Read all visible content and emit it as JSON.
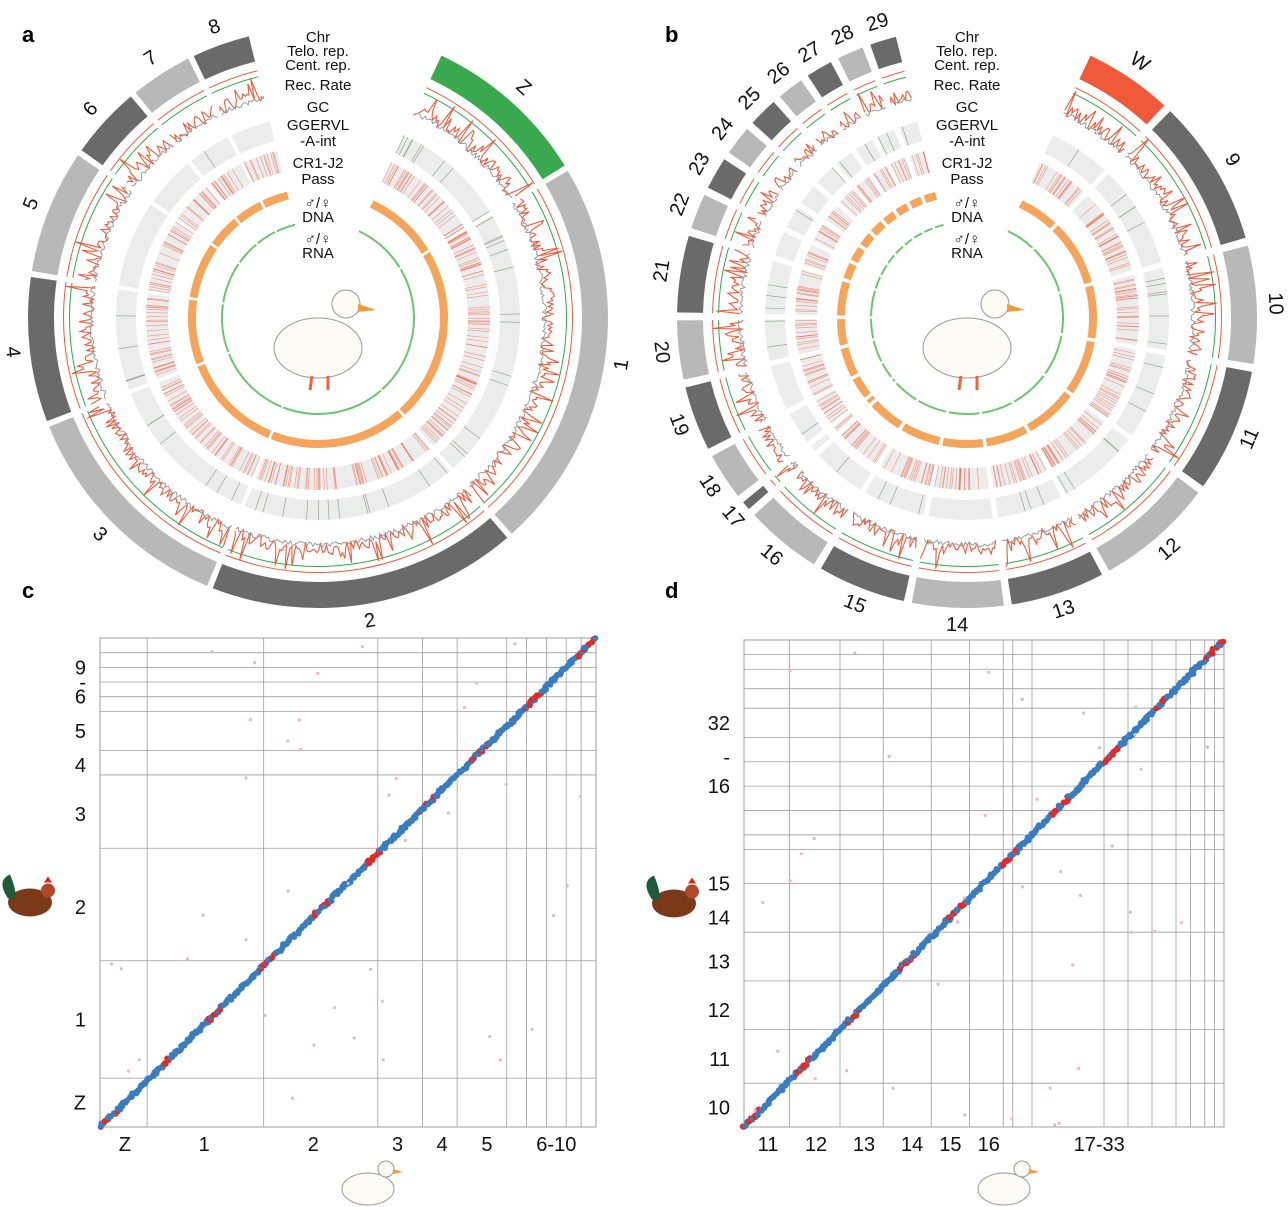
{
  "panels": {
    "a": {
      "letter": "a",
      "track_labels": [
        "Chr",
        "Telo. rep.",
        "Cent. rep.",
        "Rec. Rate",
        "GC",
        "GGERVL",
        "-A-int",
        "CR1-J2",
        "Pass",
        "♂/♀",
        "DNA",
        "♂/♀",
        "RNA"
      ],
      "chromosomes": [
        {
          "name": "Z",
          "size": 8,
          "color": "#3aa84e"
        },
        {
          "name": "1",
          "size": 19,
          "color": "#b8b8b8"
        },
        {
          "name": "2",
          "size": 15,
          "color": "#6a6a6a"
        },
        {
          "name": "3",
          "size": 11,
          "color": "#b8b8b8"
        },
        {
          "name": "4",
          "size": 7,
          "color": "#6a6a6a"
        },
        {
          "name": "5",
          "size": 6,
          "color": "#b8b8b8"
        },
        {
          "name": "6",
          "size": 3.5,
          "color": "#6a6a6a"
        },
        {
          "name": "7",
          "size": 3,
          "color": "#b8b8b8"
        },
        {
          "name": "8",
          "size": 2.8,
          "color": "#6a6a6a"
        }
      ]
    },
    "b": {
      "letter": "b",
      "track_labels": [
        "Chr",
        "Telo. rep.",
        "Cent. rep.",
        "Rec. Rate",
        "GC",
        "GGERVL",
        "-A-int",
        "CR1-J2",
        "Pass",
        "♂/♀",
        "DNA",
        "♂/♀",
        "RNA"
      ],
      "chromosomes": [
        {
          "name": "W",
          "size": 3,
          "color": "#f0593a"
        },
        {
          "name": "9",
          "size": 5,
          "color": "#6a6a6a"
        },
        {
          "name": "10",
          "size": 4,
          "color": "#b8b8b8"
        },
        {
          "name": "11",
          "size": 4.2,
          "color": "#6a6a6a"
        },
        {
          "name": "12",
          "size": 4,
          "color": "#b8b8b8"
        },
        {
          "name": "13",
          "size": 3.2,
          "color": "#6a6a6a"
        },
        {
          "name": "14",
          "size": 3.1,
          "color": "#b8b8b8"
        },
        {
          "name": "15",
          "size": 3,
          "color": "#6a6a6a"
        },
        {
          "name": "16",
          "size": 2.6,
          "color": "#b8b8b8"
        },
        {
          "name": "17",
          "size": 0.3,
          "color": "#6a6a6a"
        },
        {
          "name": "18",
          "size": 1.6,
          "color": "#b8b8b8"
        },
        {
          "name": "19",
          "size": 2.2,
          "color": "#6a6a6a"
        },
        {
          "name": "20",
          "size": 2,
          "color": "#b8b8b8"
        },
        {
          "name": "21",
          "size": 2.6,
          "color": "#6a6a6a"
        },
        {
          "name": "22",
          "size": 1.2,
          "color": "#b8b8b8"
        },
        {
          "name": "23",
          "size": 1.1,
          "color": "#6a6a6a"
        },
        {
          "name": "24",
          "size": 1,
          "color": "#b8b8b8"
        },
        {
          "name": "25",
          "size": 1,
          "color": "#6a6a6a"
        },
        {
          "name": "26",
          "size": 0.9,
          "color": "#b8b8b8"
        },
        {
          "name": "27",
          "size": 0.9,
          "color": "#6a6a6a"
        },
        {
          "name": "28",
          "size": 0.9,
          "color": "#b8b8b8"
        },
        {
          "name": "29",
          "size": 0.9,
          "color": "#6a6a6a"
        }
      ]
    },
    "c": {
      "letter": "c",
      "x_labels": [
        "Z",
        "1",
        "2",
        "3",
        "4",
        "5",
        "6-10"
      ],
      "y_labels": [
        "Z",
        "1",
        "2",
        "3",
        "4",
        "5",
        "6",
        "-",
        "9"
      ]
    },
    "d": {
      "letter": "d",
      "x_labels": [
        "11",
        "12",
        "13",
        "14",
        "15",
        "16",
        "17-33"
      ],
      "y_labels": [
        "10",
        "11",
        "12",
        "13",
        "14",
        "15",
        "16",
        "-",
        "32"
      ]
    }
  },
  "colors": {
    "telo": "#2fa84f",
    "cent": "#f0593a",
    "gc": "#9a9a9a",
    "rec": "#f0593a",
    "dna": "#f4a45b",
    "rna": "#6cc56e",
    "dot_blue": "#3a7dbf",
    "dot_red": "#e02b2b",
    "grid": "#9e9e9e"
  },
  "chart_data": [
    {
      "type": "circos",
      "panel": "a",
      "chromosomes": [
        "Z",
        "1",
        "2",
        "3",
        "4",
        "5",
        "6",
        "7",
        "8"
      ],
      "tracks": [
        "Chr",
        "Telo. rep.",
        "Cent. rep.",
        "Rec. Rate",
        "GC",
        "GGERVL-A-int",
        "CR1-J2 Pass",
        "♂/♀ DNA",
        "♂/♀ RNA"
      ]
    },
    {
      "type": "circos",
      "panel": "b",
      "chromosomes": [
        "W",
        "9",
        "10",
        "11",
        "12",
        "13",
        "14",
        "15",
        "16",
        "17",
        "18",
        "19",
        "20",
        "21",
        "22",
        "23",
        "24",
        "25",
        "26",
        "27",
        "28",
        "29"
      ],
      "tracks": [
        "Chr",
        "Telo. rep.",
        "Cent. rep.",
        "Rec. Rate",
        "GC",
        "GGERVL-A-int",
        "CR1-J2 Pass",
        "♂/♀ DNA",
        "♂/♀ RNA"
      ]
    },
    {
      "type": "scatter",
      "panel": "c",
      "x_categories": [
        "Z",
        "1",
        "2",
        "3",
        "4",
        "5",
        "6-10"
      ],
      "y_categories": [
        "Z",
        "1",
        "2",
        "3",
        "4",
        "5",
        "6-9"
      ]
    },
    {
      "type": "scatter",
      "panel": "d",
      "x_categories": [
        "11",
        "12",
        "13",
        "14",
        "15",
        "16",
        "17-33"
      ],
      "y_categories": [
        "10",
        "11",
        "12",
        "13",
        "14",
        "15",
        "16-32"
      ]
    }
  ]
}
